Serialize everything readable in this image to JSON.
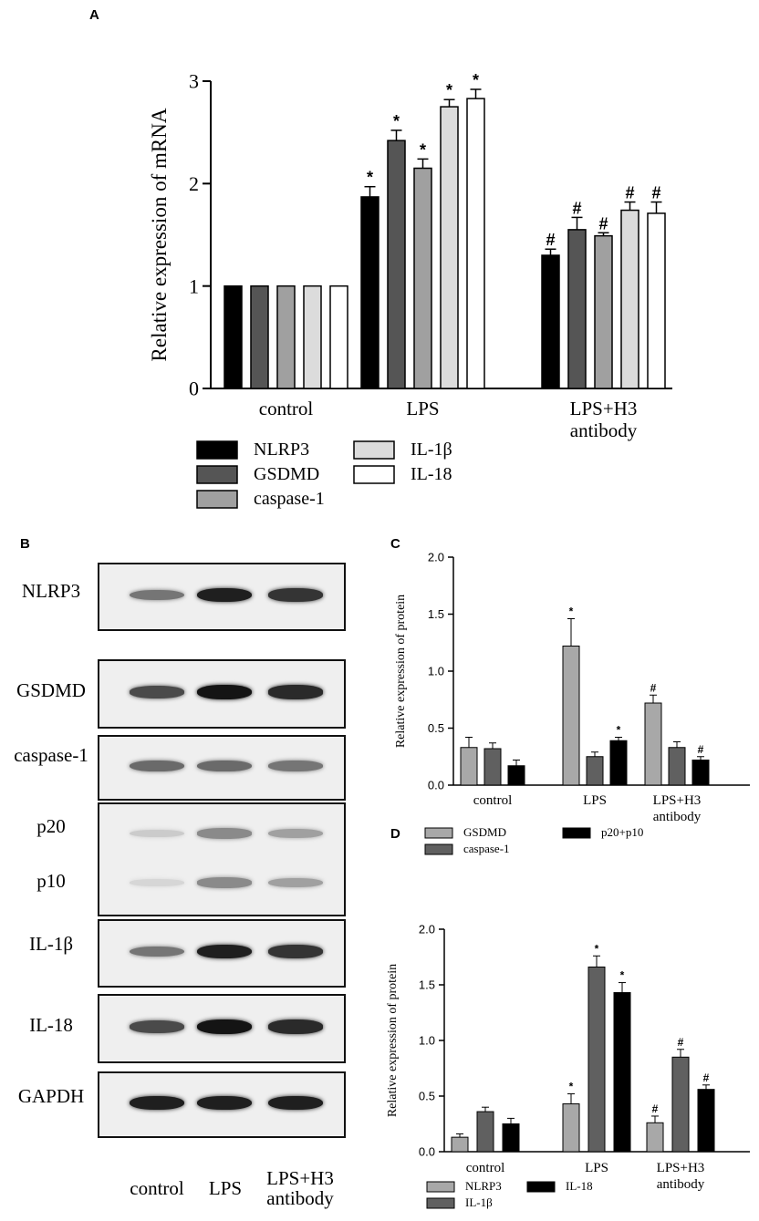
{
  "panels": {
    "a": "A",
    "b": "B",
    "c": "C",
    "d": "D"
  },
  "chart_data": [
    {
      "type": "bar",
      "panel": "A",
      "ylabel": "Relative expression of mRNA",
      "ylim": [
        0,
        3
      ],
      "yticks": [
        "0",
        "1",
        "2",
        "3"
      ],
      "categories": [
        "control",
        "LPS",
        "LPS+H3 antibody"
      ],
      "series": [
        {
          "name": "NLRP3",
          "color": "#000000",
          "values": [
            1.0,
            1.87,
            1.3
          ],
          "errors": [
            0,
            0.1,
            0.06
          ],
          "marks": [
            "",
            "*",
            "#"
          ]
        },
        {
          "name": "GSDMD",
          "color": "#555555",
          "values": [
            1.0,
            2.42,
            1.55
          ],
          "errors": [
            0,
            0.1,
            0.12
          ],
          "marks": [
            "",
            "*",
            "#"
          ]
        },
        {
          "name": "caspase-1",
          "color": "#a0a0a0",
          "values": [
            1.0,
            2.15,
            1.49
          ],
          "errors": [
            0,
            0.09,
            0.03
          ],
          "marks": [
            "",
            "*",
            "#"
          ]
        },
        {
          "name": "IL-1β",
          "color": "#dcdcdc",
          "values": [
            1.0,
            2.75,
            1.74
          ],
          "errors": [
            0,
            0.07,
            0.08
          ],
          "marks": [
            "",
            "*",
            "#"
          ]
        },
        {
          "name": "IL-18",
          "color": "#ffffff",
          "values": [
            1.0,
            2.83,
            1.71
          ],
          "errors": [
            0,
            0.09,
            0.11
          ],
          "marks": [
            "",
            "*",
            "#"
          ]
        }
      ]
    },
    {
      "type": "bar",
      "panel": "C",
      "ylabel": "Relative expression of protein",
      "ylim": [
        0,
        2.0
      ],
      "yticks": [
        "0.0",
        "0.5",
        "1.0",
        "1.5",
        "2.0"
      ],
      "categories": [
        "control",
        "LPS",
        "LPS+H3 antibody"
      ],
      "series": [
        {
          "name": "GSDMD",
          "color": "#a8a8a8",
          "values": [
            0.33,
            1.22,
            0.72
          ],
          "errors": [
            0.09,
            0.24,
            0.07
          ],
          "marks": [
            "",
            "*",
            "#"
          ]
        },
        {
          "name": "caspase-1",
          "color": "#606060",
          "values": [
            0.32,
            0.25,
            0.33
          ],
          "errors": [
            0.05,
            0.04,
            0.05
          ],
          "marks": [
            "",
            "",
            ""
          ]
        },
        {
          "name": "p20+p10",
          "color": "#000000",
          "values": [
            0.17,
            0.39,
            0.22
          ],
          "errors": [
            0.05,
            0.03,
            0.03
          ],
          "marks": [
            "",
            "*",
            "#"
          ]
        }
      ]
    },
    {
      "type": "bar",
      "panel": "D",
      "ylabel": "Relative expression of protein",
      "ylim": [
        0,
        2.0
      ],
      "yticks": [
        "0.0",
        "0.5",
        "1.0",
        "1.5",
        "2.0"
      ],
      "categories": [
        "control",
        "LPS",
        "LPS+H3 antibody"
      ],
      "series": [
        {
          "name": "NLRP3",
          "color": "#a8a8a8",
          "values": [
            0.13,
            0.43,
            0.26
          ],
          "errors": [
            0.03,
            0.09,
            0.06
          ],
          "marks": [
            "",
            "*",
            "#"
          ]
        },
        {
          "name": "IL-1β",
          "color": "#606060",
          "values": [
            0.36,
            1.66,
            0.85
          ],
          "errors": [
            0.04,
            0.1,
            0.07
          ],
          "marks": [
            "",
            "*",
            "#"
          ]
        },
        {
          "name": "IL-18",
          "color": "#000000",
          "values": [
            0.25,
            1.43,
            0.56
          ],
          "errors": [
            0.05,
            0.09,
            0.04
          ],
          "marks": [
            "",
            "*",
            "#"
          ]
        }
      ]
    }
  ],
  "blot": {
    "lanes": [
      "control",
      "LPS",
      "LPS+H3\nantibody"
    ],
    "rows": [
      {
        "label": "NLRP3",
        "intensity": [
          0.55,
          0.95,
          0.85
        ]
      },
      {
        "label": "GSDMD",
        "intensity": [
          0.75,
          1.0,
          0.9
        ]
      },
      {
        "label": "caspase-1",
        "intensity": [
          0.6,
          0.6,
          0.55
        ]
      },
      {
        "label": "p20",
        "intensity": [
          0.15,
          0.45,
          0.35
        ],
        "sub_label": "p10",
        "sub_intensity": [
          0.1,
          0.45,
          0.35
        ]
      },
      {
        "label": "IL-1β",
        "intensity": [
          0.55,
          0.95,
          0.85
        ]
      },
      {
        "label": "IL-18",
        "intensity": [
          0.75,
          1.0,
          0.9
        ]
      },
      {
        "label": "GAPDH",
        "intensity": [
          0.95,
          0.95,
          0.95
        ]
      }
    ]
  }
}
